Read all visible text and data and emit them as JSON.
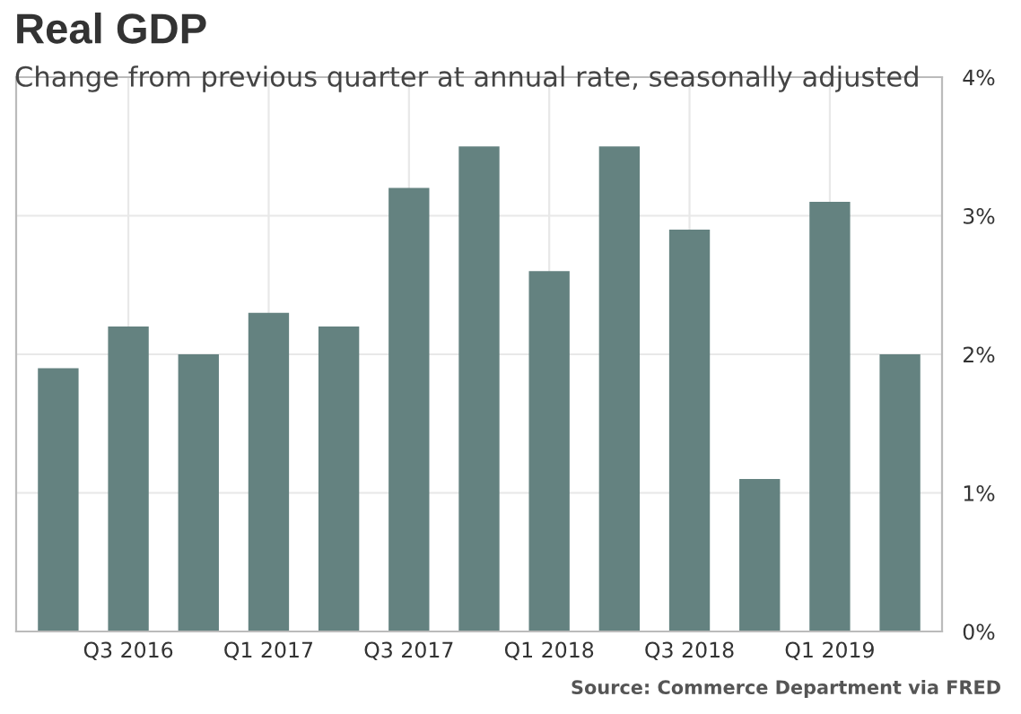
{
  "chart_data": {
    "type": "bar",
    "title": "Real GDP",
    "subtitle": "Change from previous quarter at annual rate, seasonally adjusted",
    "categories": [
      null,
      "Q3 2016",
      null,
      "Q1 2017",
      null,
      "Q3 2017",
      null,
      "Q1 2018",
      null,
      "Q3 2018",
      null,
      "Q1 2019",
      null
    ],
    "values": [
      1.9,
      2.2,
      2.0,
      2.3,
      2.2,
      3.2,
      3.5,
      2.6,
      3.5,
      2.9,
      1.1,
      3.1,
      2.0
    ],
    "color": "#648280",
    "ylim": [
      0,
      4
    ],
    "yticks": [
      {
        "value": 0,
        "label": "0%"
      },
      {
        "value": 1,
        "label": "1%"
      },
      {
        "value": 2,
        "label": "2%"
      },
      {
        "value": 3,
        "label": "3%"
      },
      {
        "value": 4,
        "label": "4%"
      }
    ],
    "grid": true,
    "annotations": [
      "Source: Commerce Department via FRED"
    ]
  }
}
